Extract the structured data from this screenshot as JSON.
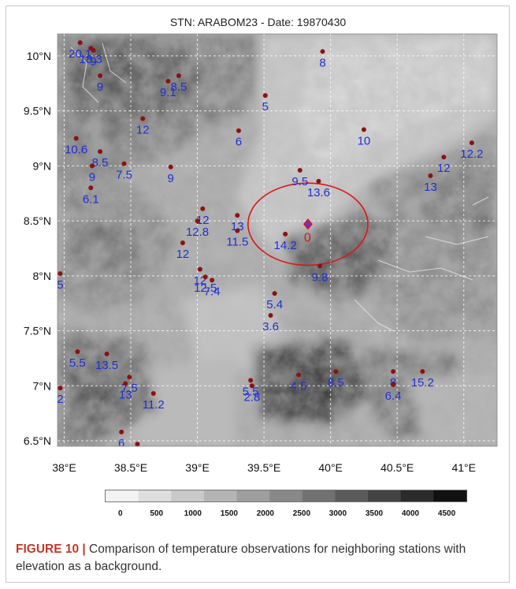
{
  "title": "STN: ARABOM23 - Date: 19870430",
  "x_ticks": [
    {
      "value": 38.0,
      "label": "38°E"
    },
    {
      "value": 38.5,
      "label": "38.5°E"
    },
    {
      "value": 39.0,
      "label": "39°E"
    },
    {
      "value": 39.5,
      "label": "39.5°E"
    },
    {
      "value": 40.0,
      "label": "40°E"
    },
    {
      "value": 40.5,
      "label": "40.5°E"
    },
    {
      "value": 41.0,
      "label": "41°E"
    }
  ],
  "y_ticks": [
    {
      "value": 10.0,
      "label": "10°N"
    },
    {
      "value": 9.5,
      "label": "9.5°N"
    },
    {
      "value": 9.0,
      "label": "9°N"
    },
    {
      "value": 8.5,
      "label": "8.5°N"
    },
    {
      "value": 8.0,
      "label": "8°N"
    },
    {
      "value": 7.5,
      "label": "7.5°N"
    },
    {
      "value": 7.0,
      "label": "7°N"
    },
    {
      "value": 6.5,
      "label": "6.5°N"
    }
  ],
  "extent": {
    "lon_min": 37.95,
    "lon_max": 41.25,
    "lat_min": 6.45,
    "lat_max": 10.2
  },
  "target_station": {
    "lon": 39.83,
    "lat": 8.47,
    "label": "0",
    "radius_deg": 0.45
  },
  "stations": [
    {
      "lon": 38.12,
      "lat": 10.12,
      "label": "20.1"
    },
    {
      "lon": 38.2,
      "lat": 10.07,
      "label": "18.3"
    },
    {
      "lon": 38.22,
      "lat": 10.05,
      "label": "9"
    },
    {
      "lon": 38.27,
      "lat": 9.82,
      "label": "9"
    },
    {
      "lon": 38.78,
      "lat": 9.77,
      "label": "9.1"
    },
    {
      "lon": 38.86,
      "lat": 9.82,
      "label": "8.5"
    },
    {
      "lon": 39.51,
      "lat": 9.64,
      "label": "5"
    },
    {
      "lon": 39.94,
      "lat": 10.04,
      "label": "8"
    },
    {
      "lon": 38.59,
      "lat": 9.43,
      "label": "12"
    },
    {
      "lon": 39.31,
      "lat": 9.32,
      "label": "6"
    },
    {
      "lon": 40.25,
      "lat": 9.33,
      "label": "10"
    },
    {
      "lon": 38.09,
      "lat": 9.25,
      "label": "10.6"
    },
    {
      "lon": 38.27,
      "lat": 9.13,
      "label": "8.5"
    },
    {
      "lon": 38.21,
      "lat": 9.0,
      "label": "9"
    },
    {
      "lon": 38.45,
      "lat": 9.02,
      "label": "7.5"
    },
    {
      "lon": 38.8,
      "lat": 8.99,
      "label": "9"
    },
    {
      "lon": 38.2,
      "lat": 8.8,
      "label": "6.1"
    },
    {
      "lon": 39.77,
      "lat": 8.96,
      "label": "9.5"
    },
    {
      "lon": 39.91,
      "lat": 8.86,
      "label": "13.6"
    },
    {
      "lon": 40.85,
      "lat": 9.08,
      "label": "12"
    },
    {
      "lon": 41.06,
      "lat": 9.21,
      "label": "12.2"
    },
    {
      "lon": 40.75,
      "lat": 8.91,
      "label": "13"
    },
    {
      "lon": 39.04,
      "lat": 8.61,
      "label": "12"
    },
    {
      "lon": 39.3,
      "lat": 8.55,
      "label": "13"
    },
    {
      "lon": 39.0,
      "lat": 8.5,
      "label": "12.8"
    },
    {
      "lon": 39.3,
      "lat": 8.41,
      "label": "11.5"
    },
    {
      "lon": 39.66,
      "lat": 8.38,
      "label": "14.2"
    },
    {
      "lon": 38.89,
      "lat": 8.3,
      "label": "12"
    },
    {
      "lon": 39.92,
      "lat": 8.09,
      "label": "9.8"
    },
    {
      "lon": 39.02,
      "lat": 8.06,
      "label": "12"
    },
    {
      "lon": 39.06,
      "lat": 7.99,
      "label": "12.5"
    },
    {
      "lon": 39.11,
      "lat": 7.96,
      "label": "7.4"
    },
    {
      "lon": 39.58,
      "lat": 7.84,
      "label": "5.4"
    },
    {
      "lon": 39.55,
      "lat": 7.64,
      "label": "3.6"
    },
    {
      "lon": 37.97,
      "lat": 8.02,
      "label": "5"
    },
    {
      "lon": 38.1,
      "lat": 7.31,
      "label": "5.5"
    },
    {
      "lon": 38.32,
      "lat": 7.29,
      "label": "13.5"
    },
    {
      "lon": 38.49,
      "lat": 7.08,
      "label": "7.5"
    },
    {
      "lon": 38.46,
      "lat": 7.02,
      "label": "13"
    },
    {
      "lon": 38.67,
      "lat": 6.93,
      "label": "11.2"
    },
    {
      "lon": 39.4,
      "lat": 7.05,
      "label": "5.5"
    },
    {
      "lon": 39.41,
      "lat": 7.0,
      "label": "2.8"
    },
    {
      "lon": 39.76,
      "lat": 7.1,
      "label": "4.5"
    },
    {
      "lon": 40.04,
      "lat": 7.13,
      "label": "8.5"
    },
    {
      "lon": 40.47,
      "lat": 7.13,
      "label": "8"
    },
    {
      "lon": 40.47,
      "lat": 7.01,
      "label": "6.4"
    },
    {
      "lon": 40.69,
      "lat": 7.13,
      "label": "15.2"
    },
    {
      "lon": 37.97,
      "lat": 6.98,
      "label": "2"
    },
    {
      "lon": 38.43,
      "lat": 6.58,
      "label": "6"
    },
    {
      "lon": 38.55,
      "lat": 6.47,
      "label": ""
    }
  ],
  "legend": {
    "ticks": [
      "0",
      "500",
      "1000",
      "1500",
      "2000",
      "2500",
      "3000",
      "3500",
      "4000",
      "4500"
    ],
    "colors": [
      "#f2f2f2",
      "#dedede",
      "#c9c9c9",
      "#b4b4b4",
      "#9e9e9e",
      "#888888",
      "#717171",
      "#5a5a5a",
      "#434343",
      "#2b2b2b",
      "#111111"
    ]
  },
  "caption": {
    "head": "FIGURE 10 |",
    "text": " Comparison of temperature observations for neighboring stations with elevation as a background."
  },
  "colors": {
    "station_dot": "#8b1212",
    "station_label": "#1f2fd6",
    "target_marker": "#e01515",
    "target_fill": "#6a32c8",
    "grid": "#ffffff"
  }
}
